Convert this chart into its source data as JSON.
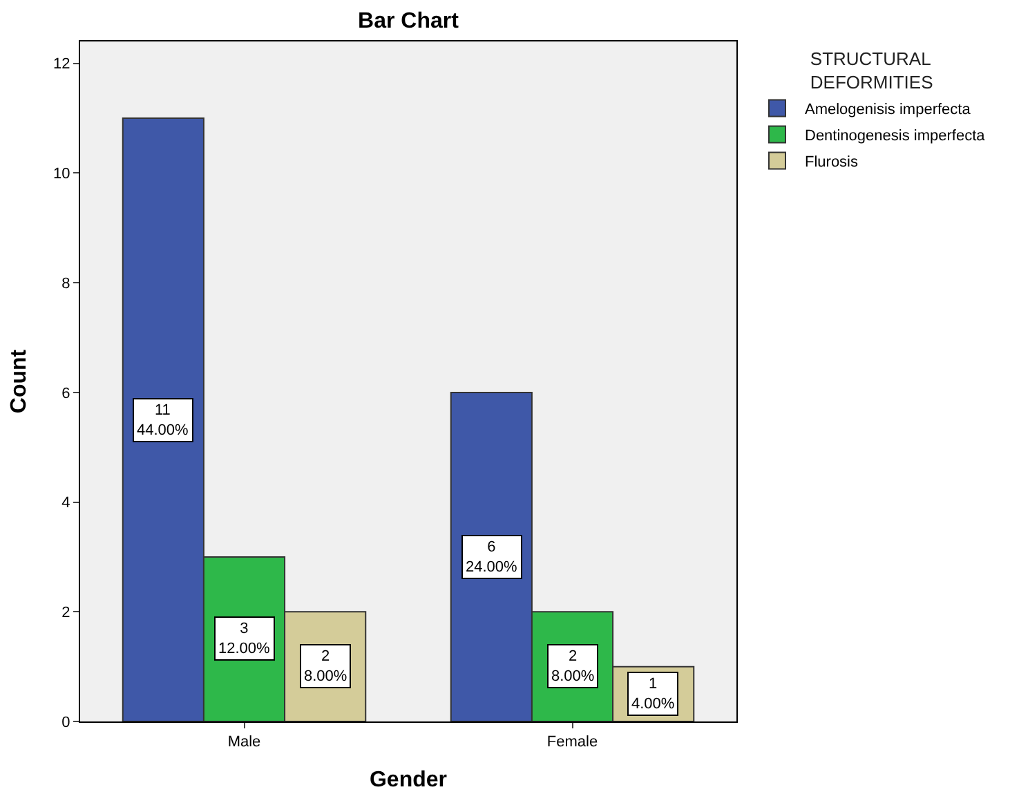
{
  "chart_data": {
    "type": "bar",
    "title": "Bar Chart",
    "xlabel": "Gender",
    "ylabel": "Count",
    "legend_title": "STRUCTURAL DEFORMITIES",
    "legend": "top right",
    "grid": false,
    "categories": [
      "Male",
      "Female"
    ],
    "ylim": [
      0,
      12.4
    ],
    "yticks": [
      0,
      2,
      4,
      6,
      8,
      10,
      12
    ],
    "series": [
      {
        "name": "Amelogenisis imperfecta",
        "color": "#3f58a8",
        "values": [
          11,
          6
        ],
        "value_labels": [
          "11\n44.00%",
          "6\n24.00%"
        ]
      },
      {
        "name": "Dentinogenesis imperfecta",
        "color": "#2eb84a",
        "values": [
          3,
          2
        ],
        "value_labels": [
          "3\n12.00%",
          "2\n8.00%"
        ]
      },
      {
        "name": "Flurosis",
        "color": "#d4cc99",
        "values": [
          2,
          1
        ],
        "value_labels": [
          "2\n8.00%",
          "1\n4.00%"
        ]
      }
    ]
  }
}
